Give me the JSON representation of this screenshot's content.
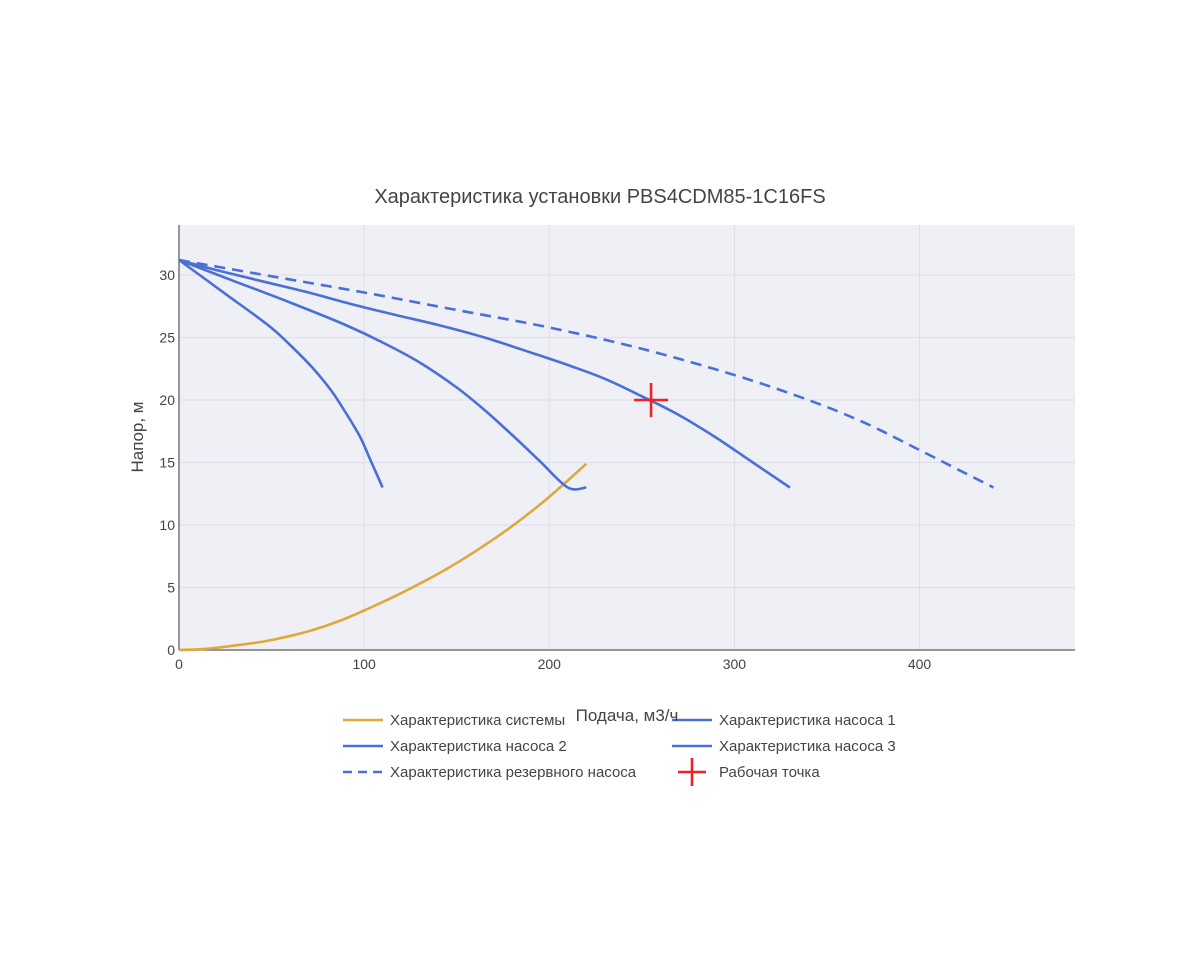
{
  "chart_data": {
    "type": "line",
    "title": "Характеристика установки PBS4CDM85-1C16FS",
    "xlabel": "Подача, м3/ч",
    "ylabel": "Напор, м",
    "xlim": [
      0,
      484
    ],
    "ylim": [
      0,
      34
    ],
    "xticks": [
      0,
      100,
      200,
      300,
      400
    ],
    "yticks": [
      0,
      5,
      10,
      15,
      20,
      25,
      30
    ],
    "grid": true,
    "legend_position": "bottom",
    "series": [
      {
        "name": "Характеристика системы",
        "color": "#e0a83a",
        "dash": false,
        "x": [
          0,
          15,
          35,
          50,
          70,
          88,
          105,
          122,
          140,
          158,
          178,
          198,
          220
        ],
        "y": [
          0,
          0.1,
          0.45,
          0.8,
          1.5,
          2.4,
          3.5,
          4.7,
          6.1,
          7.7,
          9.7,
          12.0,
          14.9
        ]
      },
      {
        "name": "Характеристика насоса 1",
        "color": "#4a6fd6",
        "dash": false,
        "x": [
          0,
          20,
          45,
          70,
          95,
          120,
          140,
          165,
          190,
          210,
          230,
          250,
          270,
          290,
          310,
          330
        ],
        "y": [
          31.2,
          30.4,
          29.5,
          28.6,
          27.6,
          26.7,
          26.0,
          25.0,
          23.8,
          22.8,
          21.7,
          20.3,
          18.8,
          17.0,
          15.0,
          13.0
        ]
      },
      {
        "name": "Характеристика насоса 2",
        "color": "#4a6fd6",
        "dash": false,
        "x": [
          0,
          30,
          60,
          90,
          110,
          130,
          150,
          165,
          180,
          195,
          210,
          220
        ],
        "y": [
          31.2,
          29.5,
          27.8,
          26.0,
          24.6,
          23.0,
          21.0,
          19.2,
          17.2,
          15.1,
          13.0,
          13.0
        ]
      },
      {
        "name": "Характеристика насоса 3",
        "color": "#4a6fd6",
        "dash": false,
        "x": [
          0,
          25,
          48,
          60,
          72,
          82,
          90,
          98,
          104,
          110
        ],
        "y": [
          31.2,
          28.5,
          26.0,
          24.4,
          22.6,
          20.8,
          19.0,
          17.0,
          15.0,
          13.0
        ]
      },
      {
        "name": "Характеристика резервного насоса",
        "color": "#4a6fd6",
        "dash": true,
        "x": [
          0,
          50,
          100,
          150,
          200,
          250,
          300,
          340,
          370,
          400,
          420,
          440
        ],
        "y": [
          31.2,
          29.9,
          28.6,
          27.2,
          25.8,
          24.1,
          22.0,
          20.0,
          18.2,
          16.0,
          14.5,
          13.0
        ]
      }
    ],
    "operating_point": {
      "name": "Рабочая точка",
      "color": "#ee2222",
      "x": 255,
      "y": 20
    }
  }
}
